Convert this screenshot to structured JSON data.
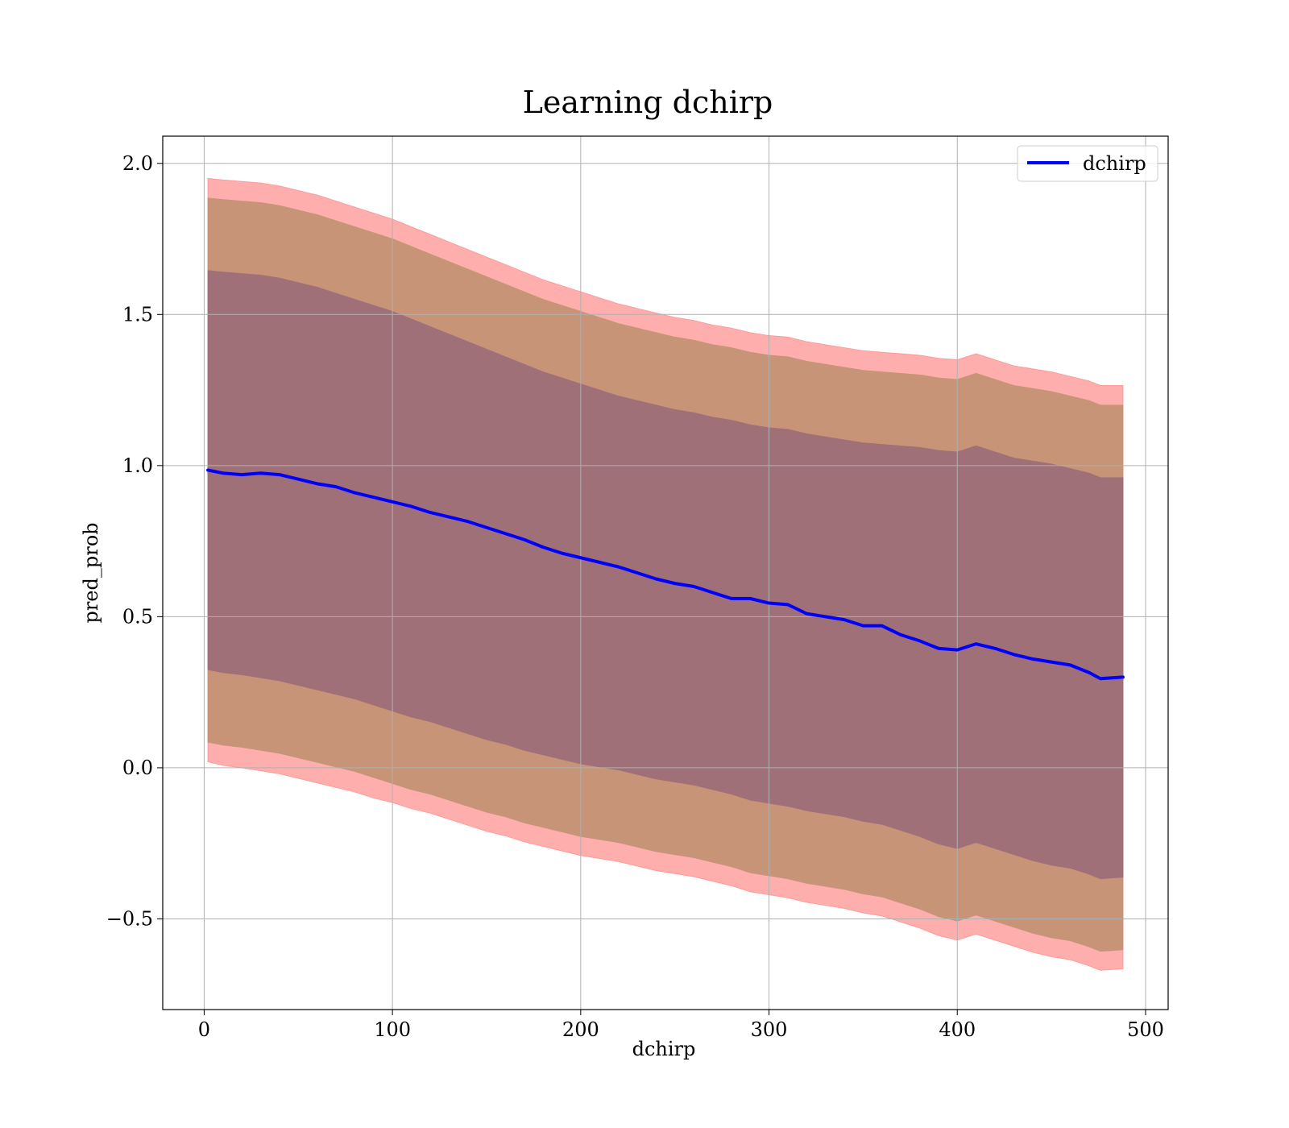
{
  "chart_data": {
    "type": "line",
    "title": "Learning dchirp",
    "xlabel": "dchirp",
    "ylabel": "pred_prob",
    "xlim": [
      -22,
      512
    ],
    "ylim": [
      -0.8,
      2.09
    ],
    "xticks": [
      0,
      100,
      200,
      300,
      400,
      500
    ],
    "xtick_labels": [
      "0",
      "100",
      "200",
      "300",
      "400",
      "500"
    ],
    "yticks": [
      -0.5,
      0.0,
      0.5,
      1.0,
      1.5,
      2.0
    ],
    "ytick_labels": [
      "−0.5",
      "0.0",
      "0.5",
      "1.0",
      "1.5",
      "2.0"
    ],
    "grid": true,
    "legend_position": "top-right",
    "colors": {
      "line": "#0000ff",
      "band_3sigma": "#ff9a9a",
      "band_2sigma": "#c79478",
      "band_1sigma": "#a07078",
      "grid": "#b0b0b0"
    },
    "series": [
      {
        "name": "dchirp",
        "x": [
          2,
          10,
          20,
          30,
          40,
          50,
          60,
          70,
          80,
          90,
          100,
          110,
          120,
          130,
          140,
          150,
          160,
          170,
          180,
          190,
          200,
          210,
          220,
          230,
          240,
          250,
          260,
          270,
          280,
          290,
          300,
          310,
          320,
          330,
          340,
          350,
          360,
          370,
          380,
          390,
          400,
          410,
          420,
          430,
          440,
          450,
          460,
          470,
          476,
          488
        ],
        "y": [
          0.985,
          0.975,
          0.97,
          0.975,
          0.97,
          0.955,
          0.94,
          0.93,
          0.91,
          0.895,
          0.88,
          0.865,
          0.845,
          0.83,
          0.815,
          0.795,
          0.775,
          0.755,
          0.73,
          0.71,
          0.695,
          0.68,
          0.665,
          0.645,
          0.625,
          0.61,
          0.6,
          0.58,
          0.56,
          0.56,
          0.545,
          0.54,
          0.51,
          0.5,
          0.49,
          0.47,
          0.47,
          0.44,
          0.42,
          0.395,
          0.39,
          0.41,
          0.395,
          0.375,
          0.36,
          0.35,
          0.34,
          0.315,
          0.295,
          0.3
        ]
      }
    ],
    "bands": [
      {
        "level": "3sigma",
        "upper": [
          1.95,
          1.945,
          1.94,
          1.935,
          1.925,
          1.91,
          1.895,
          1.875,
          1.855,
          1.835,
          1.815,
          1.79,
          1.765,
          1.74,
          1.715,
          1.69,
          1.665,
          1.64,
          1.615,
          1.595,
          1.575,
          1.555,
          1.535,
          1.52,
          1.505,
          1.49,
          1.48,
          1.465,
          1.455,
          1.44,
          1.43,
          1.425,
          1.41,
          1.4,
          1.39,
          1.38,
          1.375,
          1.37,
          1.365,
          1.355,
          1.35,
          1.37,
          1.35,
          1.33,
          1.32,
          1.31,
          1.295,
          1.28,
          1.265,
          1.265
        ],
        "lower": [
          0.02,
          0.008,
          0.0,
          -0.01,
          -0.02,
          -0.035,
          -0.05,
          -0.065,
          -0.08,
          -0.1,
          -0.115,
          -0.135,
          -0.15,
          -0.17,
          -0.19,
          -0.21,
          -0.225,
          -0.245,
          -0.26,
          -0.275,
          -0.29,
          -0.3,
          -0.31,
          -0.325,
          -0.34,
          -0.35,
          -0.36,
          -0.375,
          -0.39,
          -0.41,
          -0.42,
          -0.43,
          -0.445,
          -0.455,
          -0.465,
          -0.48,
          -0.49,
          -0.51,
          -0.53,
          -0.555,
          -0.57,
          -0.55,
          -0.57,
          -0.59,
          -0.61,
          -0.625,
          -0.635,
          -0.655,
          -0.67,
          -0.665
        ]
      },
      {
        "level": "2sigma",
        "upper": [
          1.885,
          1.88,
          1.875,
          1.87,
          1.86,
          1.845,
          1.83,
          1.81,
          1.79,
          1.77,
          1.75,
          1.725,
          1.7,
          1.675,
          1.65,
          1.625,
          1.6,
          1.575,
          1.55,
          1.53,
          1.51,
          1.49,
          1.47,
          1.455,
          1.44,
          1.425,
          1.415,
          1.4,
          1.39,
          1.375,
          1.365,
          1.36,
          1.345,
          1.335,
          1.325,
          1.315,
          1.31,
          1.305,
          1.3,
          1.29,
          1.285,
          1.305,
          1.285,
          1.265,
          1.255,
          1.245,
          1.23,
          1.215,
          1.2,
          1.2
        ],
        "lower": [
          0.085,
          0.075,
          0.068,
          0.058,
          0.048,
          0.033,
          0.018,
          0.003,
          -0.012,
          -0.032,
          -0.052,
          -0.072,
          -0.087,
          -0.107,
          -0.127,
          -0.147,
          -0.162,
          -0.182,
          -0.197,
          -0.212,
          -0.227,
          -0.237,
          -0.247,
          -0.262,
          -0.277,
          -0.287,
          -0.297,
          -0.312,
          -0.327,
          -0.347,
          -0.357,
          -0.367,
          -0.382,
          -0.392,
          -0.402,
          -0.417,
          -0.427,
          -0.447,
          -0.467,
          -0.492,
          -0.507,
          -0.487,
          -0.507,
          -0.527,
          -0.547,
          -0.562,
          -0.572,
          -0.592,
          -0.607,
          -0.602
        ]
      },
      {
        "level": "1sigma",
        "upper": [
          1.645,
          1.64,
          1.635,
          1.63,
          1.62,
          1.605,
          1.59,
          1.57,
          1.55,
          1.53,
          1.51,
          1.485,
          1.46,
          1.435,
          1.41,
          1.385,
          1.36,
          1.335,
          1.31,
          1.29,
          1.27,
          1.25,
          1.23,
          1.215,
          1.2,
          1.185,
          1.175,
          1.16,
          1.15,
          1.135,
          1.125,
          1.12,
          1.105,
          1.095,
          1.085,
          1.075,
          1.07,
          1.065,
          1.06,
          1.05,
          1.045,
          1.065,
          1.045,
          1.025,
          1.015,
          1.005,
          0.99,
          0.975,
          0.96,
          0.96
        ],
        "lower": [
          0.325,
          0.315,
          0.308,
          0.298,
          0.288,
          0.273,
          0.258,
          0.243,
          0.228,
          0.208,
          0.188,
          0.168,
          0.153,
          0.133,
          0.113,
          0.093,
          0.078,
          0.058,
          0.043,
          0.028,
          0.013,
          0.003,
          -0.007,
          -0.022,
          -0.037,
          -0.047,
          -0.057,
          -0.072,
          -0.087,
          -0.107,
          -0.117,
          -0.127,
          -0.142,
          -0.152,
          -0.162,
          -0.177,
          -0.187,
          -0.207,
          -0.227,
          -0.252,
          -0.267,
          -0.247,
          -0.267,
          -0.287,
          -0.307,
          -0.322,
          -0.332,
          -0.352,
          -0.367,
          -0.362
        ]
      }
    ]
  }
}
